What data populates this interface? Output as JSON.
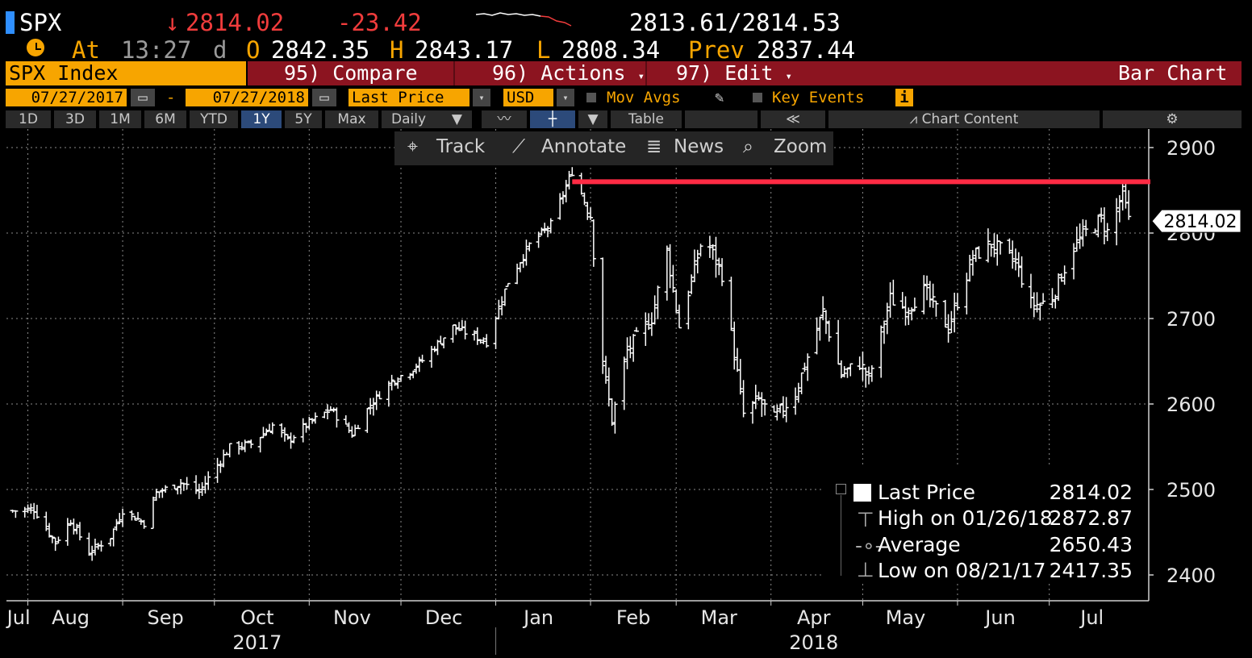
{
  "header": {
    "ticker": "SPX",
    "last": "2814.02",
    "change": "-23.42",
    "bid_ask": "2813.61/2814.53",
    "at_label": "At",
    "time": "13:27",
    "d_flag": "d",
    "open_label": "O",
    "open": "2842.35",
    "high_label": "H",
    "high": "2843.17",
    "low_label": "L",
    "low": "2808.34",
    "prev_label": "Prev",
    "prev": "2837.44"
  },
  "menu": {
    "security": "SPX Index",
    "compare": "95) Compare",
    "actions": "96) Actions",
    "edit": "97) Edit",
    "chart_type": "Bar Chart"
  },
  "controls": {
    "start_date": "07/27/2017",
    "dash": "-",
    "end_date": "07/27/2018",
    "field": "Last Price",
    "currency": "USD",
    "mov_avgs": "Mov Avgs",
    "key_events": "Key Events"
  },
  "ranges": [
    "1D",
    "3D",
    "1M",
    "6M",
    "YTD",
    "1Y",
    "5Y",
    "Max"
  ],
  "selected_range": "1Y",
  "periodicity": "Daily",
  "table_label": "Table",
  "chart_content_label": "Chart Content",
  "toolbar": {
    "track": "Track",
    "annotate": "Annotate",
    "news": "News",
    "zoom": "Zoom"
  },
  "legend": {
    "last_price_label": "Last Price",
    "last_price_value": "2814.02",
    "high_label": "High on 01/26/18",
    "high_value": "2872.87",
    "average_label": "Average",
    "average_value": "2650.43",
    "low_label": "Low on 08/21/17",
    "low_value": "2417.35"
  },
  "colors": {
    "background": "#000000",
    "accent_orange": "#f7a500",
    "menu_red": "#8c1420",
    "down_red": "#f03c3c",
    "resistance_line": "#ff2b44",
    "price_bars": "#ffffff"
  },
  "chart_data": {
    "type": "bar",
    "periodicity": "daily",
    "y_ticks": [
      2400,
      2500,
      2600,
      2700,
      2800,
      2900
    ],
    "ylim": [
      2370,
      2920
    ],
    "grid": true,
    "x_month_labels": [
      "Jul",
      "Aug",
      "Sep",
      "Oct",
      "Nov",
      "Dec",
      "Jan",
      "Feb",
      "Mar",
      "Apr",
      "May",
      "Jun",
      "Jul"
    ],
    "x_year_labels": [
      "2017",
      "2018"
    ],
    "last_price_tag": "2814.02",
    "horizontal_line": {
      "value": 2860,
      "from": "2018-01-26",
      "to": "2018-07-27",
      "color": "#ff2b44"
    },
    "anchors": [
      [
        "2017-07-27",
        2475
      ],
      [
        "2017-08-03",
        2477
      ],
      [
        "2017-08-10",
        2438
      ],
      [
        "2017-08-15",
        2464
      ],
      [
        "2017-08-21",
        2426
      ],
      [
        "2017-08-28",
        2445
      ],
      [
        "2017-09-01",
        2476
      ],
      [
        "2017-09-08",
        2461
      ],
      [
        "2017-09-12",
        2496
      ],
      [
        "2017-09-20",
        2508
      ],
      [
        "2017-09-26",
        2497
      ],
      [
        "2017-10-02",
        2529
      ],
      [
        "2017-10-06",
        2549
      ],
      [
        "2017-10-13",
        2553
      ],
      [
        "2017-10-20",
        2575
      ],
      [
        "2017-10-25",
        2557
      ],
      [
        "2017-10-31",
        2575
      ],
      [
        "2017-11-08",
        2594
      ],
      [
        "2017-11-15",
        2565
      ],
      [
        "2017-11-21",
        2599
      ],
      [
        "2017-11-28",
        2627
      ],
      [
        "2017-12-04",
        2639
      ],
      [
        "2017-12-08",
        2651
      ],
      [
        "2017-12-18",
        2690
      ],
      [
        "2017-12-29",
        2673
      ],
      [
        "2018-01-05",
        2743
      ],
      [
        "2018-01-12",
        2786
      ],
      [
        "2018-01-19",
        2810
      ],
      [
        "2018-01-26",
        2872
      ],
      [
        "2018-02-01",
        2821
      ],
      [
        "2018-02-05",
        2648
      ],
      [
        "2018-02-08",
        2581
      ],
      [
        "2018-02-13",
        2662
      ],
      [
        "2018-02-21",
        2701
      ],
      [
        "2018-02-26",
        2779
      ],
      [
        "2018-03-02",
        2691
      ],
      [
        "2018-03-09",
        2786
      ],
      [
        "2018-03-12",
        2783
      ],
      [
        "2018-03-16",
        2752
      ],
      [
        "2018-03-23",
        2588
      ],
      [
        "2018-03-28",
        2605
      ],
      [
        "2018-04-02",
        2582
      ],
      [
        "2018-04-09",
        2613
      ],
      [
        "2018-04-18",
        2708
      ],
      [
        "2018-04-24",
        2634
      ],
      [
        "2018-04-30",
        2648
      ],
      [
        "2018-05-03",
        2629
      ],
      [
        "2018-05-10",
        2723
      ],
      [
        "2018-05-15",
        2711
      ],
      [
        "2018-05-21",
        2733
      ],
      [
        "2018-05-29",
        2689
      ],
      [
        "2018-06-06",
        2772
      ],
      [
        "2018-06-12",
        2787
      ],
      [
        "2018-06-15",
        2780
      ],
      [
        "2018-06-20",
        2767
      ],
      [
        "2018-06-25",
        2717
      ],
      [
        "2018-06-28",
        2716
      ],
      [
        "2018-07-02",
        2726
      ],
      [
        "2018-07-09",
        2784
      ],
      [
        "2018-07-13",
        2801
      ],
      [
        "2018-07-18",
        2816
      ],
      [
        "2018-07-20",
        2801
      ],
      [
        "2018-07-25",
        2846
      ],
      [
        "2018-07-27",
        2814
      ]
    ]
  }
}
